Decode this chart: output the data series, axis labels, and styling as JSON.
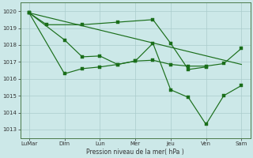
{
  "background_color": "#cce8e8",
  "grid_color": "#aacccc",
  "line_color": "#1a6e1a",
  "ylabel_text": "Pression niveau de la mer( hPa )",
  "xtick_labels": [
    "LuMar",
    "Dim",
    "Lun",
    "Mer",
    "Jeu",
    "Ven",
    "Sam"
  ],
  "ylim": [
    1012.5,
    1020.5
  ],
  "yticks": [
    1013,
    1014,
    1015,
    1016,
    1017,
    1018,
    1019,
    1020
  ],
  "series": [
    {
      "x": [
        0,
        1,
        3,
        5,
        7,
        8,
        9,
        10
      ],
      "y": [
        1019.9,
        1019.2,
        1019.2,
        1019.35,
        1019.5,
        1018.1,
        1016.55,
        1016.7
      ]
    },
    {
      "x": [
        0,
        2,
        3,
        4,
        5,
        6,
        7,
        8,
        9,
        10,
        11,
        12
      ],
      "y": [
        1019.9,
        1018.3,
        1017.3,
        1017.35,
        1016.85,
        1017.05,
        1017.1,
        1016.85,
        1016.75,
        1016.75,
        1016.9,
        1017.8
      ]
    },
    {
      "x": [
        0,
        2,
        3,
        4,
        5,
        6,
        7,
        8,
        9,
        10,
        11,
        12
      ],
      "y": [
        1019.9,
        1016.3,
        1016.6,
        1016.7,
        1016.85,
        1017.05,
        1018.1,
        1015.35,
        1014.9,
        1013.3,
        1015.0,
        1015.6
      ]
    },
    {
      "x": [
        0,
        12
      ],
      "y": [
        1019.9,
        1016.85
      ]
    }
  ]
}
